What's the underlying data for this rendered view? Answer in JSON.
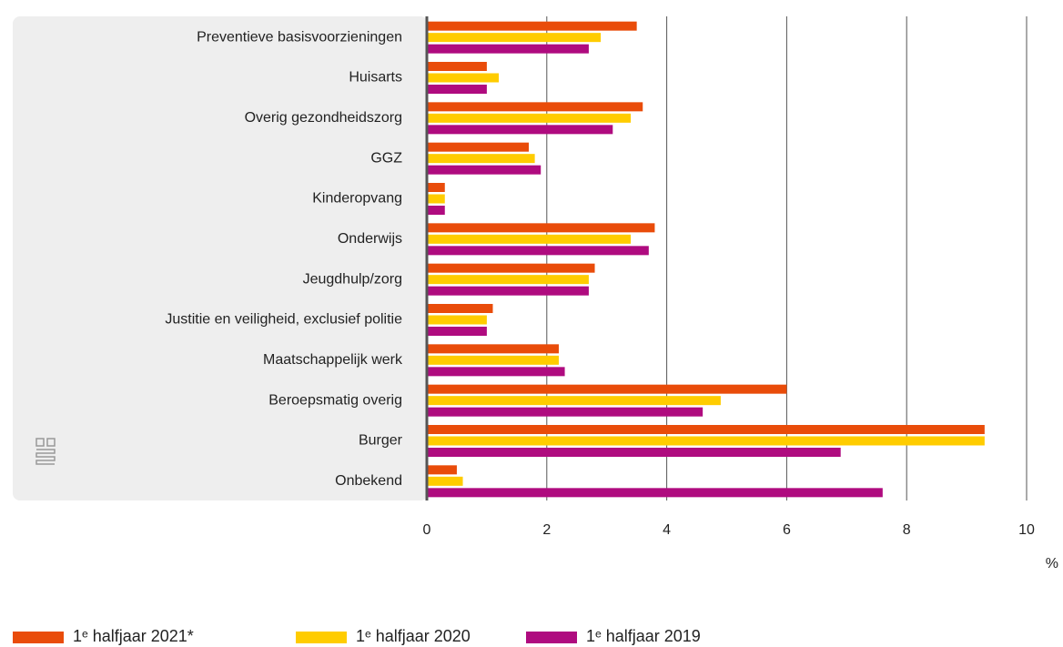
{
  "chart_data": {
    "type": "bar",
    "orientation": "horizontal",
    "categories": [
      "Preventieve basisvoorzieningen",
      "Huisarts",
      "Overig gezondheidszorg",
      "GGZ",
      "Kinderopvang",
      "Onderwijs",
      "Jeugdhulp/zorg",
      "Justitie en veiligheid, exclusief politie",
      "Maatschappelijk werk",
      "Beroepsmatig overig",
      "Burger",
      "Onbekend"
    ],
    "series": [
      {
        "name": "1ᵉ halfjaar 2021*",
        "color": "#e94c0a",
        "values": [
          3.5,
          1.0,
          3.6,
          1.7,
          0.3,
          3.8,
          2.8,
          1.1,
          2.2,
          6.0,
          9.3,
          0.5
        ]
      },
      {
        "name": "1ᵉ halfjaar 2020",
        "color": "#ffcc00",
        "values": [
          2.9,
          1.2,
          3.4,
          1.8,
          0.3,
          3.4,
          2.7,
          1.0,
          2.2,
          4.9,
          9.3,
          0.6
        ]
      },
      {
        "name": "1ᵉ halfjaar 2019",
        "color": "#af0b7f",
        "values": [
          2.7,
          1.0,
          3.1,
          1.9,
          0.3,
          3.7,
          2.7,
          1.0,
          2.3,
          4.6,
          6.9,
          7.6
        ]
      }
    ],
    "xlim": [
      0,
      10
    ],
    "xticks": [
      0,
      2,
      4,
      6,
      8,
      10
    ],
    "x_unit": "%",
    "grid": true,
    "legend": "bottom"
  }
}
